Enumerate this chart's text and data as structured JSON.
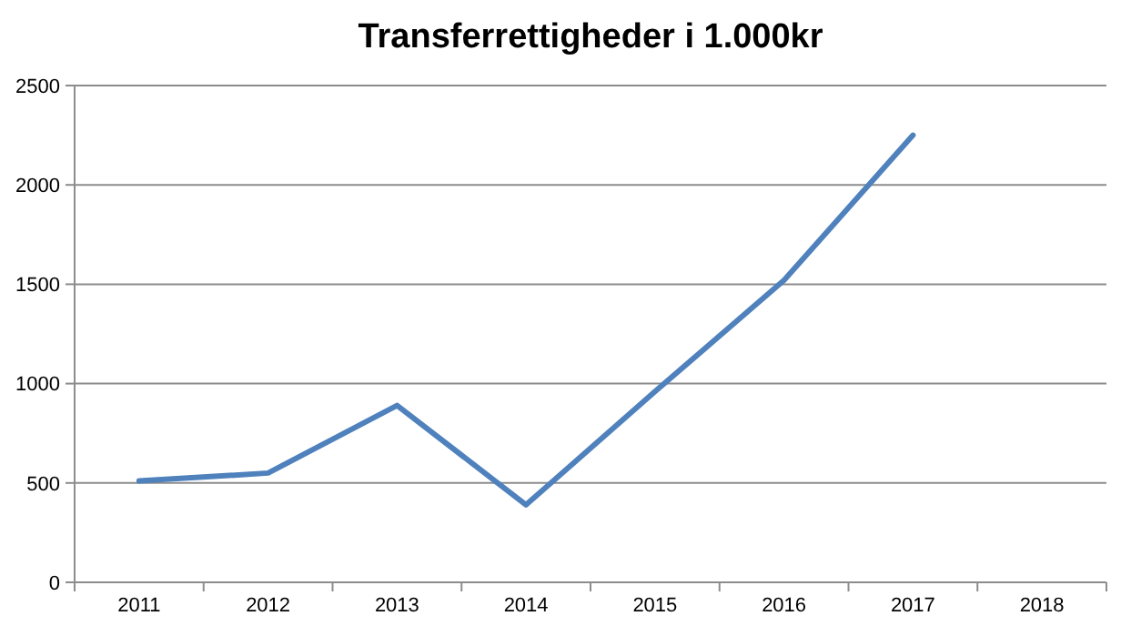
{
  "chart_data": {
    "type": "line",
    "title": "Transferrettigheder i 1.000kr",
    "categories": [
      "2011",
      "2012",
      "2013",
      "2014",
      "2015",
      "2016",
      "2017",
      "2018"
    ],
    "series": [
      {
        "color": "#4f81bd",
        "values": [
          510,
          550,
          890,
          390,
          960,
          1520,
          2250,
          null
        ]
      }
    ],
    "ylim": [
      0,
      2500
    ],
    "yticks": [
      0,
      500,
      1000,
      1500,
      2000,
      2500
    ],
    "grid": "y",
    "marker": "none",
    "line_style": "solid"
  }
}
